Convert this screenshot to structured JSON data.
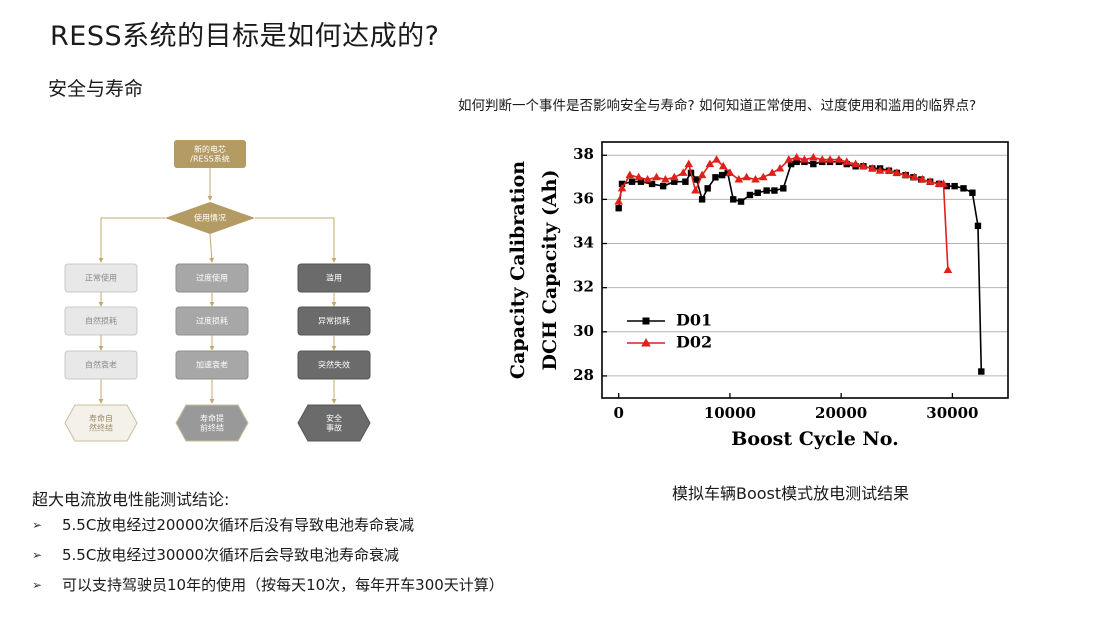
{
  "page": {
    "title": "RESS系统的目标是如何达成的?",
    "subtitle": "安全与寿命",
    "question": "如何判断一个事件是否影响安全与寿命?  如何知道正常使用、过度使用和滥用的临界点?",
    "chart_caption": "模拟车辆Boost模式放电测试结果",
    "conclusion_title": "超大电流放电性能测试结论:",
    "bullet_marker": "➢",
    "bullets": [
      "5.5C放电经过20000次循环后没有导致电池寿命衰减",
      "5.5C放电经过30000次循环后会导致电池寿命衰减",
      "可以支持驾驶员10年的使用（按每天10次，每年开车300天计算）"
    ]
  },
  "flowchart": {
    "top": "新的电芯\n/RESS系统",
    "decision": "使用情况",
    "columns": [
      {
        "nodes": [
          "正常使用",
          "自然损耗",
          "自然衰老"
        ],
        "end": "寿命自\n然终结",
        "fill": "#e8e8e8",
        "stroke": "#c8c8c8",
        "text": "#8a8a8a",
        "end_fill": "#f4f1ea",
        "end_stroke": "#c9bd9c"
      },
      {
        "nodes": [
          "过度使用",
          "过度损耗",
          "加速衰老"
        ],
        "end": "寿命提\n前终结",
        "fill": "#a7a7a7",
        "stroke": "#8f8f8f",
        "text": "#ffffff",
        "end_fill": "#999999",
        "end_stroke": "#c9bd9c"
      },
      {
        "nodes": [
          "滥用",
          "异常损耗",
          "突然失效"
        ],
        "end": "安全\n事故",
        "fill": "#6b6b6b",
        "stroke": "#555555",
        "text": "#ffffff",
        "end_fill": "#6b6b6b",
        "end_stroke": "#555555"
      }
    ],
    "colors": {
      "gold": "#b39b63",
      "line": "#c4a96c"
    }
  },
  "chart_data": {
    "type": "line",
    "xlabel": "Boost Cycle No.",
    "ylabel": [
      "Capacity Calibration",
      "DCH Capacity (Ah)"
    ],
    "xlim": [
      -1500,
      35000
    ],
    "ylim": [
      27,
      38.6
    ],
    "xticks": [
      0,
      10000,
      20000,
      30000
    ],
    "yticks": [
      28,
      30,
      32,
      34,
      36,
      38
    ],
    "grid": "horizontal",
    "legend_position": "lower-left",
    "series": [
      {
        "name": "D01",
        "color": "#000000",
        "marker": "square",
        "x": [
          0,
          300,
          1200,
          2000,
          3000,
          4000,
          5000,
          6000,
          6500,
          7000,
          7500,
          8000,
          8700,
          9300,
          9800,
          10300,
          11000,
          11800,
          12500,
          13300,
          14000,
          14800,
          15500,
          16000,
          16700,
          17500,
          18300,
          19000,
          19800,
          20500,
          21300,
          22000,
          22800,
          23500,
          24300,
          25000,
          25800,
          26500,
          27200,
          28000,
          28800,
          29500,
          30200,
          31000,
          31800,
          32300,
          32600
        ],
        "y": [
          35.6,
          36.7,
          36.8,
          36.8,
          36.7,
          36.6,
          36.8,
          36.8,
          37.2,
          36.9,
          36.0,
          36.5,
          37.0,
          37.1,
          37.2,
          36.0,
          35.9,
          36.2,
          36.3,
          36.4,
          36.4,
          36.5,
          37.6,
          37.7,
          37.7,
          37.6,
          37.7,
          37.7,
          37.7,
          37.6,
          37.5,
          37.5,
          37.4,
          37.4,
          37.3,
          37.2,
          37.1,
          37.0,
          36.9,
          36.8,
          36.7,
          36.6,
          36.6,
          36.5,
          36.3,
          34.8,
          28.2
        ]
      },
      {
        "name": "D02",
        "color": "#e0201b",
        "marker": "triangle",
        "x": [
          0,
          300,
          1000,
          1800,
          2600,
          3400,
          4200,
          5000,
          5800,
          6300,
          6900,
          7500,
          8200,
          8800,
          9400,
          10000,
          10800,
          11500,
          12300,
          13000,
          13800,
          14500,
          15300,
          16000,
          16700,
          17500,
          18300,
          19000,
          19800,
          20500,
          21300,
          22000,
          22800,
          23500,
          24300,
          25000,
          25800,
          26600,
          27300,
          28000,
          28800,
          29200,
          29600
        ],
        "y": [
          35.9,
          36.5,
          37.1,
          37.0,
          36.9,
          37.0,
          36.9,
          37.0,
          37.2,
          37.6,
          36.4,
          37.1,
          37.6,
          37.8,
          37.5,
          37.2,
          36.9,
          37.0,
          36.9,
          37.0,
          37.2,
          37.4,
          37.8,
          37.9,
          37.8,
          37.9,
          37.8,
          37.8,
          37.8,
          37.7,
          37.6,
          37.5,
          37.4,
          37.3,
          37.3,
          37.2,
          37.1,
          37.0,
          36.9,
          36.8,
          36.7,
          36.7,
          32.8
        ]
      }
    ]
  }
}
